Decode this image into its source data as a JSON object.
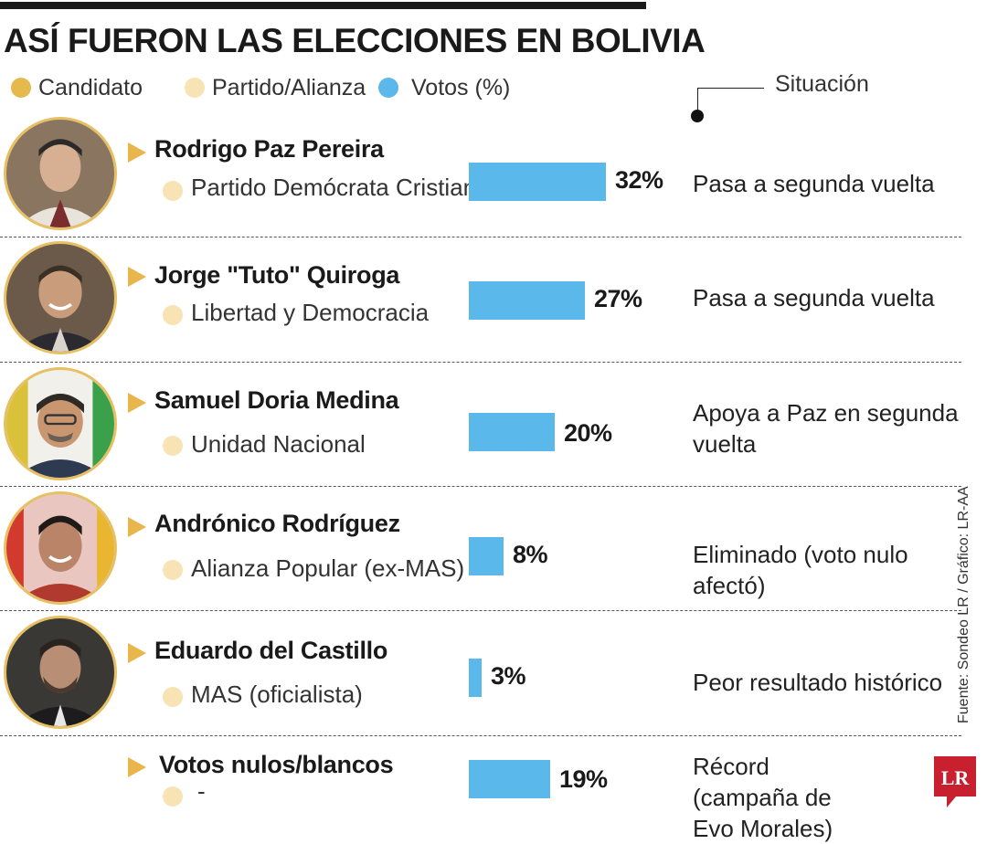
{
  "title": "ASÍ FUERON LAS ELECCIONES EN BOLIVIA",
  "legend": {
    "candidate": "Candidato",
    "party": "Partido/Alianza",
    "votes": "Votos (%)",
    "situation": "Situación"
  },
  "colors": {
    "candidate_dot": "#e6b94f",
    "party_dot": "#f7e3b3",
    "bar": "#5ab8ea",
    "triangle": "#e8b64b",
    "avatar_border": "#e8c064",
    "logo": "#c8202f"
  },
  "rows": [
    {
      "candidate": "Rodrigo Paz Pereira",
      "party": "Partido Demócrata Cristiano",
      "pct_label": "32%",
      "status": "Pasa a segunda vuelta"
    },
    {
      "candidate": "Jorge \"Tuto\" Quiroga",
      "party": "Libertad y Democracia",
      "pct_label": "27%",
      "status": "Pasa a segunda vuelta"
    },
    {
      "candidate": "Samuel Doria Medina",
      "party": "Unidad Nacional",
      "pct_label": "20%",
      "status": "Apoya a Paz en segunda vuelta"
    },
    {
      "candidate": "Andrónico Rodríguez",
      "party": "Alianza Popular (ex-MAS)",
      "pct_label": "8%",
      "status": "Eliminado (voto nulo afectó)"
    },
    {
      "candidate": "Eduardo del Castillo",
      "party": "MAS (oficialista)",
      "pct_label": "3%",
      "status": "Peor resultado histórico"
    },
    {
      "candidate": "Votos nulos/blancos",
      "party": "-",
      "pct_label": "19%",
      "status": "Récord (campaña de Evo Morales)"
    }
  ],
  "chart_data": {
    "type": "bar",
    "orientation": "horizontal",
    "title": "ASÍ FUERON LAS ELECCIONES EN BOLIVIA",
    "categories": [
      "Rodrigo Paz Pereira",
      "Jorge \"Tuto\" Quiroga",
      "Samuel Doria Medina",
      "Andrónico Rodríguez",
      "Eduardo del Castillo",
      "Votos nulos/blancos"
    ],
    "values": [
      32,
      27,
      20,
      8,
      3,
      19
    ],
    "value_labels": [
      "32%",
      "27%",
      "20%",
      "8%",
      "3%",
      "19%"
    ],
    "unit": "%"
  },
  "source": "Fuente: Sondeo LR / Gráfico: LR-AA",
  "logo_text": "LR"
}
